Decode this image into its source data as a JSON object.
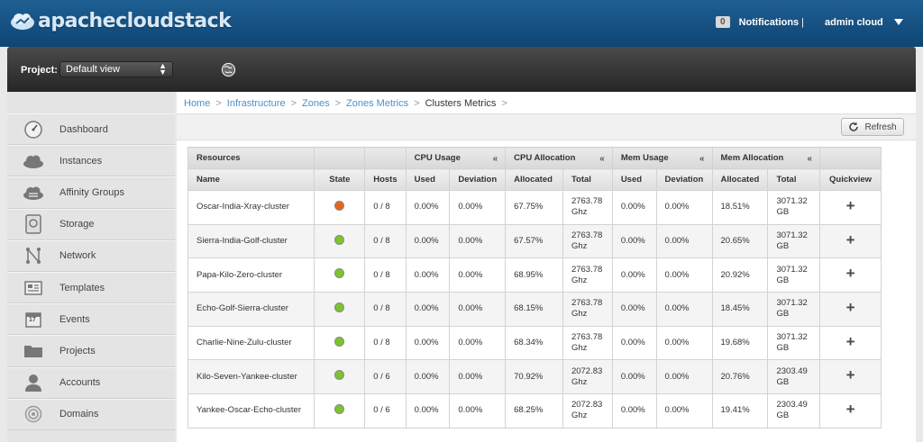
{
  "header": {
    "logo_text": "apachecloudstack",
    "notifications_count": "0",
    "notifications_label": "Notifications",
    "separator": "|",
    "user_name": "admin cloud"
  },
  "project": {
    "label": "Project:",
    "selected": "Default view"
  },
  "sidebar": {
    "items": [
      {
        "label": "Dashboard",
        "icon": "dashboard-icon"
      },
      {
        "label": "Instances",
        "icon": "cloud-icon"
      },
      {
        "label": "Affinity Groups",
        "icon": "affinity-groups-icon"
      },
      {
        "label": "Storage",
        "icon": "storage-icon"
      },
      {
        "label": "Network",
        "icon": "network-icon"
      },
      {
        "label": "Templates",
        "icon": "templates-icon"
      },
      {
        "label": "Events",
        "icon": "calendar-icon"
      },
      {
        "label": "Projects",
        "icon": "folder-icon"
      },
      {
        "label": "Accounts",
        "icon": "user-icon"
      },
      {
        "label": "Domains",
        "icon": "domains-icon"
      }
    ],
    "events_day": "17"
  },
  "breadcrumb": {
    "items": [
      "Home",
      "Infrastructure",
      "Zones",
      "Zones Metrics",
      "Clusters Metrics"
    ],
    "sep": ">"
  },
  "toolbar": {
    "refresh_label": "Refresh"
  },
  "table": {
    "group_headers": {
      "resources": "Resources",
      "cpu_usage": "CPU Usage",
      "cpu_allocation": "CPU Allocation",
      "mem_usage": "Mem Usage",
      "mem_allocation": "Mem Allocation",
      "collapse": "«"
    },
    "columns": [
      "Name",
      "State",
      "Hosts",
      "Used",
      "Deviation",
      "Allocated",
      "Total",
      "Used",
      "Deviation",
      "Allocated",
      "Total",
      "Quickview"
    ],
    "state_colors": {
      "alert": "#e8641e",
      "enabled": "#7bc52c"
    },
    "rows": [
      {
        "name": "Oscar-India-Xray-cluster",
        "state": "alert",
        "hosts": "0 / 8",
        "cpu_used": "0.00%",
        "cpu_dev": "0.00%",
        "cpu_alloc": "67.75%",
        "cpu_total_1": "2763.78",
        "cpu_total_2": "Ghz",
        "mem_used": "0.00%",
        "mem_dev": "0.00%",
        "mem_alloc": "18.51%",
        "mem_total_1": "3071.32",
        "mem_total_2": "GB",
        "quickview": "+"
      },
      {
        "name": "Sierra-India-Golf-cluster",
        "state": "enabled",
        "hosts": "0 / 8",
        "cpu_used": "0.00%",
        "cpu_dev": "0.00%",
        "cpu_alloc": "67.57%",
        "cpu_total_1": "2763.78",
        "cpu_total_2": "Ghz",
        "mem_used": "0.00%",
        "mem_dev": "0.00%",
        "mem_alloc": "20.65%",
        "mem_total_1": "3071.32",
        "mem_total_2": "GB",
        "quickview": "+"
      },
      {
        "name": "Papa-Kilo-Zero-cluster",
        "state": "enabled",
        "hosts": "0 / 8",
        "cpu_used": "0.00%",
        "cpu_dev": "0.00%",
        "cpu_alloc": "68.95%",
        "cpu_total_1": "2763.78",
        "cpu_total_2": "Ghz",
        "mem_used": "0.00%",
        "mem_dev": "0.00%",
        "mem_alloc": "20.92%",
        "mem_total_1": "3071.32",
        "mem_total_2": "GB",
        "quickview": "+"
      },
      {
        "name": "Echo-Golf-Sierra-cluster",
        "state": "enabled",
        "hosts": "0 / 8",
        "cpu_used": "0.00%",
        "cpu_dev": "0.00%",
        "cpu_alloc": "68.15%",
        "cpu_total_1": "2763.78",
        "cpu_total_2": "Ghz",
        "mem_used": "0.00%",
        "mem_dev": "0.00%",
        "mem_alloc": "18.45%",
        "mem_total_1": "3071.32",
        "mem_total_2": "GB",
        "quickview": "+"
      },
      {
        "name": "Charlie-Nine-Zulu-cluster",
        "state": "enabled",
        "hosts": "0 / 8",
        "cpu_used": "0.00%",
        "cpu_dev": "0.00%",
        "cpu_alloc": "68.34%",
        "cpu_total_1": "2763.78",
        "cpu_total_2": "Ghz",
        "mem_used": "0.00%",
        "mem_dev": "0.00%",
        "mem_alloc": "19.68%",
        "mem_total_1": "3071.32",
        "mem_total_2": "GB",
        "quickview": "+"
      },
      {
        "name": "Kilo-Seven-Yankee-cluster",
        "state": "enabled",
        "hosts": "0 / 6",
        "cpu_used": "0.00%",
        "cpu_dev": "0.00%",
        "cpu_alloc": "70.92%",
        "cpu_total_1": "2072.83",
        "cpu_total_2": "Ghz",
        "mem_used": "0.00%",
        "mem_dev": "0.00%",
        "mem_alloc": "20.76%",
        "mem_total_1": "2303.49",
        "mem_total_2": "GB",
        "quickview": "+"
      },
      {
        "name": "Yankee-Oscar-Echo-cluster",
        "state": "enabled",
        "hosts": "0 / 6",
        "cpu_used": "0.00%",
        "cpu_dev": "0.00%",
        "cpu_alloc": "68.25%",
        "cpu_total_1": "2072.83",
        "cpu_total_2": "Ghz",
        "mem_used": "0.00%",
        "mem_dev": "0.00%",
        "mem_alloc": "19.41%",
        "mem_total_1": "2303.49",
        "mem_total_2": "GB",
        "quickview": "+"
      }
    ]
  }
}
